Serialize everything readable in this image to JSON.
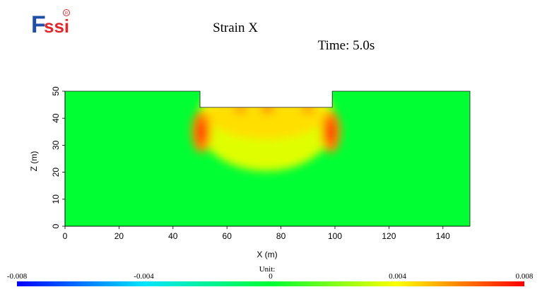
{
  "logo": {
    "text_f": "F",
    "text_ssi": "ssi",
    "registered_mark": "R",
    "color_f": "#1f4ea6",
    "color_ssi": "#e8262a"
  },
  "chart_data": {
    "type": "heatmap",
    "title": "Strain X",
    "time_label": "Time: 5.0s",
    "xlabel": "X (m)",
    "ylabel": "Z (m)",
    "xlim": [
      0,
      150
    ],
    "ylim": [
      0,
      50
    ],
    "x_ticks": [
      0,
      20,
      40,
      60,
      80,
      100,
      120,
      140
    ],
    "y_ticks": [
      0,
      10,
      20,
      30,
      40,
      50
    ],
    "domain_outline_m": [
      [
        0,
        0
      ],
      [
        150,
        0
      ],
      [
        150,
        50
      ],
      [
        99,
        50
      ],
      [
        99,
        44
      ],
      [
        50,
        44
      ],
      [
        50,
        50
      ],
      [
        0,
        50
      ]
    ],
    "excavation": {
      "x_range": [
        50,
        99
      ],
      "bottom_z": 44,
      "top_z": 50
    },
    "hotspots": [
      {
        "x": 50.5,
        "z": 35,
        "value": 0.0072
      },
      {
        "x": 98.5,
        "z": 35,
        "value": 0.0072
      },
      {
        "x": 65,
        "z": 43.5,
        "value": 0.006
      },
      {
        "x": 75,
        "z": 43.5,
        "value": 0.0062
      },
      {
        "x": 90,
        "z": 43.5,
        "value": 0.006
      }
    ],
    "background_value": 0.0,
    "colorbar": {
      "unit_label": "Unit:",
      "min": -0.008,
      "max": 0.008,
      "tick_labels": [
        "-0.008",
        "-0.004",
        "0",
        "0.004",
        "0.008"
      ],
      "tick_values": [
        -0.008,
        -0.004,
        0,
        0.004,
        0.008
      ],
      "colors": [
        "#0000ff",
        "#00e5ff",
        "#00ff33",
        "#ffff00",
        "#ff0000"
      ]
    }
  }
}
